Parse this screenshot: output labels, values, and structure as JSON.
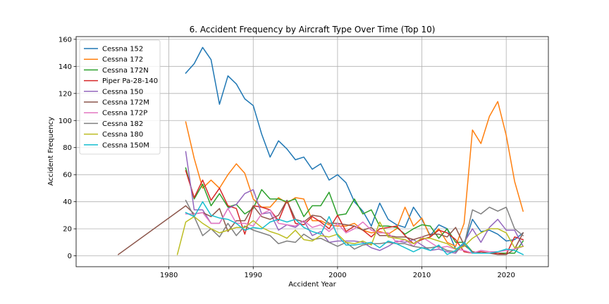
{
  "chart_data": {
    "type": "line",
    "title": "6. Accident Frequency by Aircraft Type Over Time (Top 10)",
    "xlabel": "Accident Year",
    "ylabel": "Accident Frequency",
    "xlim": [
      1969,
      2025
    ],
    "ylim": [
      -8,
      162
    ],
    "xticks": [
      1980,
      1990,
      2000,
      2010,
      2020
    ],
    "yticks": [
      0,
      20,
      40,
      60,
      80,
      100,
      120,
      140,
      160
    ],
    "grid": true,
    "legend_position": "top-left",
    "series": [
      {
        "name": "Cessna 152",
        "color": "#1f77b4",
        "x": [
          1982,
          1983,
          1984,
          1985,
          1986,
          1987,
          1988,
          1989,
          1990,
          1991,
          1992,
          1993,
          1994,
          1995,
          1996,
          1997,
          1998,
          1999,
          2000,
          2001,
          2002,
          2003,
          2004,
          2005,
          2006,
          2007,
          2008,
          2009,
          2010,
          2011,
          2012,
          2013,
          2014,
          2015,
          2016,
          2017,
          2018,
          2019,
          2020,
          2021,
          2022
        ],
        "values": [
          135,
          142,
          154,
          145,
          112,
          133,
          127,
          116,
          111,
          90,
          73,
          85,
          79,
          71,
          73,
          64,
          68,
          56,
          60,
          54,
          40,
          33,
          22,
          39,
          27,
          23,
          21,
          36,
          27,
          15,
          23,
          20,
          5,
          8,
          27,
          18,
          19,
          16,
          11,
          12,
          17
        ]
      },
      {
        "name": "Cessna 172",
        "color": "#ff7f0e",
        "x": [
          1982,
          1983,
          1984,
          1985,
          1986,
          1987,
          1988,
          1989,
          1990,
          1991,
          1992,
          1993,
          1994,
          1995,
          1996,
          1997,
          1998,
          1999,
          2000,
          2001,
          2002,
          2003,
          2004,
          2005,
          2006,
          2007,
          2008,
          2009,
          2010,
          2011,
          2012,
          2013,
          2014,
          2015,
          2016,
          2017,
          2018,
          2019,
          2020,
          2021,
          2022
        ],
        "values": [
          99,
          72,
          50,
          56,
          50,
          60,
          68,
          61,
          42,
          36,
          36,
          43,
          39,
          43,
          42,
          26,
          26,
          23,
          22,
          22,
          24,
          19,
          17,
          18,
          16,
          20,
          36,
          22,
          28,
          14,
          20,
          10,
          7,
          24,
          93,
          83,
          103,
          114,
          89,
          55,
          33
        ]
      },
      {
        "name": "Cessna 172N",
        "color": "#2ca02c",
        "x": [
          1982,
          1983,
          1984,
          1985,
          1986,
          1987,
          1988,
          1989,
          1990,
          1991,
          1992,
          1993,
          1994,
          1995,
          1996,
          1997,
          1998,
          1999,
          2000,
          2001,
          2002,
          2003,
          2004,
          2005,
          2006,
          2007,
          2008,
          2009,
          2010,
          2011,
          2012,
          2013,
          2014,
          2015,
          2016,
          2017,
          2018,
          2019,
          2020,
          2021,
          2022
        ],
        "values": [
          65,
          42,
          53,
          37,
          46,
          36,
          38,
          31,
          35,
          49,
          42,
          42,
          40,
          42,
          29,
          37,
          37,
          47,
          30,
          31,
          42,
          31,
          34,
          22,
          22,
          21,
          16,
          20,
          23,
          22,
          13,
          20,
          10,
          10,
          3,
          2,
          2,
          2,
          2,
          2,
          11
        ]
      },
      {
        "name": "Piper Pa-28-140",
        "color": "#d62728",
        "x": [
          1982,
          1983,
          1984,
          1985,
          1986,
          1987,
          1988,
          1989,
          1990,
          1991,
          1992,
          1993,
          1994,
          1995,
          1996,
          1997,
          1998,
          1999,
          2000,
          2001,
          2002,
          2003,
          2004,
          2005,
          2006,
          2007,
          2008,
          2009,
          2010,
          2011,
          2012,
          2013,
          2014,
          2015,
          2016,
          2017,
          2018,
          2019,
          2020,
          2021,
          2022
        ],
        "values": [
          63,
          43,
          56,
          41,
          50,
          37,
          35,
          16,
          37,
          36,
          34,
          26,
          41,
          24,
          23,
          29,
          25,
          20,
          30,
          18,
          22,
          19,
          14,
          20,
          21,
          22,
          15,
          9,
          12,
          14,
          19,
          17,
          12,
          3,
          2,
          3,
          2,
          2,
          1,
          14,
          12
        ]
      },
      {
        "name": "Cessna 150",
        "color": "#9467bd",
        "x": [
          1982,
          1983,
          1984,
          1985,
          1986,
          1987,
          1988,
          1989,
          1990,
          1991,
          1992,
          1993,
          1994,
          1995,
          1996,
          1997,
          1998,
          1999,
          2000,
          2001,
          2002,
          2003,
          2004,
          2005,
          2006,
          2007,
          2008,
          2009,
          2010,
          2011,
          2012,
          2013,
          2014,
          2015,
          2016,
          2017,
          2018,
          2019,
          2020,
          2021,
          2022
        ],
        "values": [
          77,
          34,
          34,
          24,
          24,
          35,
          38,
          46,
          49,
          31,
          32,
          19,
          23,
          21,
          26,
          15,
          18,
          10,
          11,
          11,
          11,
          10,
          6,
          4,
          7,
          11,
          10,
          12,
          8,
          4,
          5,
          3,
          2,
          10,
          20,
          10,
          21,
          27,
          19,
          19,
          7
        ]
      },
      {
        "name": "Cessna 172M",
        "color": "#8c564b",
        "x": [
          1974,
          1982,
          1983,
          1984,
          1985,
          1986,
          1987,
          1988,
          1989,
          1990,
          1991,
          1992,
          1993,
          1994,
          1995,
          1996,
          1997,
          1998,
          1999,
          2000,
          2001,
          2002,
          2003,
          2004,
          2005,
          2006,
          2007,
          2008,
          2009,
          2010,
          2011,
          2012,
          2013,
          2014,
          2015,
          2016,
          2017,
          2018,
          2019,
          2020,
          2021,
          2022
        ],
        "values": [
          1,
          37,
          31,
          32,
          29,
          35,
          18,
          26,
          26,
          37,
          29,
          27,
          30,
          41,
          27,
          25,
          30,
          29,
          24,
          24,
          23,
          22,
          19,
          21,
          15,
          15,
          14,
          14,
          12,
          14,
          16,
          16,
          14,
          21,
          8,
          3,
          2,
          2,
          1,
          1,
          5,
          17
        ]
      },
      {
        "name": "Cessna 172P",
        "color": "#e377c2",
        "x": [
          1982,
          1983,
          1984,
          1985,
          1986,
          1987,
          1988,
          1989,
          1990,
          1991,
          1992,
          1993,
          1994,
          1995,
          1996,
          1997,
          1998,
          1999,
          2000,
          2001,
          2002,
          2003,
          2004,
          2005,
          2006,
          2007,
          2008,
          2009,
          2010,
          2011,
          2012,
          2013,
          2014,
          2015,
          2016,
          2017,
          2018,
          2019,
          2020,
          2021,
          2022
        ],
        "values": [
          31,
          31,
          32,
          24,
          24,
          35,
          24,
          24,
          22,
          31,
          34,
          24,
          23,
          22,
          26,
          21,
          23,
          18,
          24,
          17,
          20,
          25,
          19,
          17,
          17,
          10,
          12,
          7,
          14,
          10,
          6,
          7,
          5,
          4,
          2,
          4,
          3,
          3,
          4,
          5,
          7
        ]
      },
      {
        "name": "Cessna 182",
        "color": "#7f7f7f",
        "x": [
          1982,
          1983,
          1984,
          1985,
          1986,
          1987,
          1988,
          1989,
          1990,
          1991,
          1992,
          1993,
          1994,
          1995,
          1996,
          1997,
          1998,
          1999,
          2000,
          2001,
          2002,
          2003,
          2004,
          2005,
          2006,
          2007,
          2008,
          2009,
          2010,
          2011,
          2012,
          2013,
          2014,
          2015,
          2016,
          2017,
          2018,
          2019,
          2020,
          2021,
          2022
        ],
        "values": [
          41,
          29,
          15,
          20,
          14,
          24,
          15,
          22,
          19,
          17,
          15,
          9,
          11,
          10,
          16,
          12,
          13,
          10,
          7,
          10,
          5,
          8,
          9,
          9,
          10,
          9,
          9,
          7,
          6,
          6,
          7,
          4,
          3,
          8,
          34,
          31,
          36,
          33,
          36,
          20,
          15
        ]
      },
      {
        "name": "Cessna 180",
        "color": "#bcbd22",
        "x": [
          1981,
          1982,
          1983,
          1984,
          1985,
          1986,
          1987,
          1988,
          1989,
          1990,
          1991,
          1992,
          1993,
          1994,
          1995,
          1996,
          1997,
          1998,
          1999,
          2000,
          2001,
          2002,
          2003,
          2004,
          2005,
          2006,
          2007,
          2008,
          2009,
          2010,
          2011,
          2012,
          2013,
          2014,
          2015,
          2016,
          2017,
          2018,
          2019,
          2020,
          2021,
          2022
        ],
        "values": [
          1,
          25,
          29,
          24,
          20,
          17,
          19,
          21,
          21,
          26,
          21,
          18,
          16,
          13,
          19,
          12,
          11,
          15,
          14,
          16,
          10,
          9,
          11,
          8,
          25,
          14,
          13,
          12,
          9,
          13,
          13,
          11,
          9,
          5,
          7,
          13,
          17,
          20,
          20,
          17,
          6,
          7
        ]
      },
      {
        "name": "Cessna 150M",
        "color": "#17becf",
        "x": [
          1982,
          1983,
          1984,
          1985,
          1986,
          1987,
          1988,
          1989,
          1990,
          1991,
          1992,
          1993,
          1994,
          1995,
          1996,
          1997,
          1998,
          1999,
          2000,
          2001,
          2002,
          2003,
          2004,
          2005,
          2006,
          2007,
          2008,
          2009,
          2010,
          2011,
          2012,
          2013,
          2014,
          2015,
          2016,
          2017,
          2018,
          2019,
          2020,
          2021,
          2022
        ],
        "values": [
          32,
          29,
          40,
          30,
          28,
          27,
          24,
          19,
          21,
          20,
          25,
          27,
          25,
          27,
          21,
          18,
          16,
          29,
          15,
          8,
          8,
          9,
          10,
          6,
          11,
          9,
          6,
          3,
          6,
          4,
          8,
          1,
          4,
          10,
          2,
          2,
          2,
          3,
          5,
          4,
          1
        ]
      }
    ]
  }
}
